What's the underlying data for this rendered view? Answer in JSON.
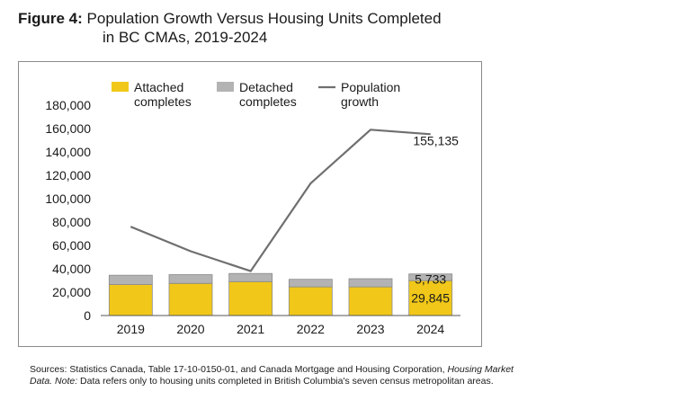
{
  "figure": {
    "label": "Figure 4:",
    "title_line1": "Population Growth Versus Housing Units Completed",
    "title_line2": "in BC CMAs, 2019-2024"
  },
  "source": {
    "part1": "Sources: Statistics Canada, Table 17-10-0150-01, and Canada Mortgage and Housing Corporation, ",
    "italic1": "Housing Market Data.",
    "space": " ",
    "italic2": "Note:",
    "part2": " Data refers only to housing units completed in British Columbia's seven census metropolitan areas."
  },
  "chart_data": {
    "type": "bar",
    "categories": [
      "2019",
      "2020",
      "2021",
      "2022",
      "2023",
      "2024"
    ],
    "series": [
      {
        "name": "Attached completes",
        "kind": "bar",
        "stack": "completes",
        "color": "#f1c819",
        "values": [
          26500,
          27500,
          29000,
          24500,
          24500,
          29845
        ]
      },
      {
        "name": "Detached completes",
        "kind": "bar",
        "stack": "completes",
        "color": "#b3b3b3",
        "values": [
          8000,
          7500,
          7000,
          6500,
          7000,
          5733
        ]
      },
      {
        "name": "Population growth",
        "kind": "line",
        "color": "#6f6f6f",
        "values": [
          76000,
          55000,
          38000,
          113000,
          159000,
          155135
        ]
      }
    ],
    "legend": [
      {
        "line1": "Attached",
        "line2": "completes",
        "swatch": "box",
        "color": "#f1c819"
      },
      {
        "line1": "Detached",
        "line2": "completes",
        "swatch": "box",
        "color": "#b3b3b3"
      },
      {
        "line1": "Population",
        "line2": "growth",
        "swatch": "line",
        "color": "#6f6f6f"
      }
    ],
    "legend_position": "top",
    "ylim": [
      0,
      180000
    ],
    "yticks": [
      0,
      20000,
      40000,
      60000,
      80000,
      100000,
      120000,
      140000,
      160000,
      180000
    ],
    "ytick_labels": [
      "0",
      "20,000",
      "40,000",
      "60,000",
      "80,000",
      "100,000",
      "120,000",
      "140,000",
      "160,000",
      "180,000"
    ],
    "grid": false,
    "annotations": [
      {
        "text": "155,135",
        "category": "2024",
        "series": "Population growth"
      },
      {
        "text": "5,733",
        "category": "2024",
        "series": "Detached completes"
      },
      {
        "text": "29,845",
        "category": "2024",
        "series": "Attached completes"
      }
    ]
  }
}
